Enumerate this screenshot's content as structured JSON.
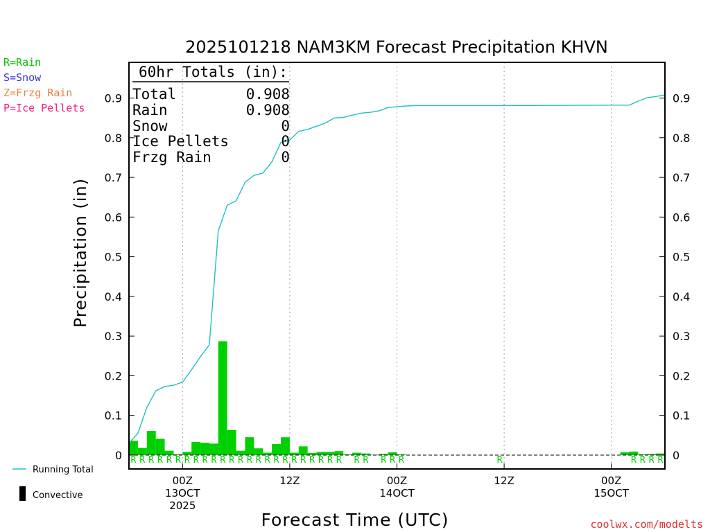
{
  "chart_data": {
    "type": "bar",
    "title": "2025101218 NAM3KM Forecast Precipitation KHVN",
    "xlabel": "Forecast Time (UTC)",
    "ylabel": "Precipitation (in)",
    "ylim": [
      -0.035,
      0.99
    ],
    "yticks": [
      0,
      0.1,
      0.2,
      0.3,
      0.4,
      0.5,
      0.6,
      0.7,
      0.8,
      0.9
    ],
    "ytick_labels": [
      "0",
      "0.1",
      "0.2",
      "0.3",
      "0.4",
      "0.5",
      "0.6",
      "0.7",
      "0.8",
      "0.9"
    ],
    "xlim_hours": [
      0,
      60
    ],
    "hour_axis_note": "hours after 2025-10-12 18Z",
    "xticks": [
      {
        "hour": 6,
        "line1": "00Z",
        "line2": "13OCT",
        "line3": "2025"
      },
      {
        "hour": 18,
        "line1": "12Z",
        "line2": "",
        "line3": ""
      },
      {
        "hour": 30,
        "line1": "00Z",
        "line2": "14OCT",
        "line3": ""
      },
      {
        "hour": 42,
        "line1": "12Z",
        "line2": "",
        "line3": ""
      },
      {
        "hour": 54,
        "line1": "00Z",
        "line2": "15OCT",
        "line3": ""
      }
    ],
    "bars_hourly": {
      "name": "Convective",
      "color": "#00d000",
      "hour_end": [
        1,
        2,
        3,
        4,
        5,
        6,
        7,
        8,
        9,
        10,
        11,
        12,
        13,
        14,
        15,
        16,
        17,
        18,
        19,
        20,
        21,
        22,
        23,
        24,
        25,
        26,
        27,
        28,
        29,
        30,
        31,
        56,
        57,
        58,
        59,
        60
      ],
      "values": [
        0.036,
        0.018,
        0.061,
        0.041,
        0.011,
        0.002,
        0.008,
        0.033,
        0.031,
        0.029,
        0.287,
        0.063,
        0.011,
        0.045,
        0.017,
        0.006,
        0.028,
        0.045,
        0.006,
        0.022,
        0.005,
        0.008,
        0.008,
        0.01,
        0.002,
        0.006,
        0.004,
        0.001,
        0.003,
        0.007,
        0.002,
        0.007,
        0.009,
        0.002,
        0.003,
        0.004
      ]
    },
    "running_total": {
      "name": "Running Total",
      "color": "#20c0c0",
      "hours": [
        0,
        1,
        2,
        3,
        4,
        5,
        6,
        7,
        8,
        9,
        10,
        11,
        12,
        13,
        14,
        15,
        16,
        17,
        18,
        19,
        20,
        21,
        22,
        23,
        24,
        25,
        26,
        27,
        28,
        29,
        30,
        31,
        32,
        42,
        56,
        57,
        58,
        59,
        60
      ],
      "values": [
        0.03,
        0.055,
        0.12,
        0.162,
        0.173,
        0.176,
        0.184,
        0.215,
        0.248,
        0.278,
        0.565,
        0.63,
        0.641,
        0.688,
        0.705,
        0.711,
        0.739,
        0.788,
        0.794,
        0.816,
        0.821,
        0.829,
        0.837,
        0.85,
        0.851,
        0.857,
        0.862,
        0.864,
        0.868,
        0.876,
        0.878,
        0.88,
        0.881,
        0.881,
        0.882,
        0.892,
        0.901,
        0.904,
        0.908
      ]
    },
    "ptype_row": {
      "symbol": "R",
      "color": "#00d000",
      "hours": [
        1,
        2,
        3,
        4,
        5,
        6,
        7,
        8,
        9,
        10,
        11,
        12,
        13,
        14,
        15,
        16,
        17,
        18,
        19,
        20,
        21,
        22,
        23,
        24,
        26,
        27,
        29,
        30,
        31,
        42,
        57,
        58,
        59,
        60
      ]
    },
    "totals_box": {
      "heading": "60hr Totals (in):",
      "rows": [
        {
          "label": "Total",
          "value": "0.908"
        },
        {
          "label": "Rain",
          "value": "0.908"
        },
        {
          "label": "Snow",
          "value": "0"
        },
        {
          "label": "Ice Pellets",
          "value": "0"
        },
        {
          "label": "Frzg Rain",
          "value": "0"
        }
      ]
    }
  },
  "ptype_legend": [
    {
      "text": "R=Rain",
      "color": "#00c000"
    },
    {
      "text": "S=Snow",
      "color": "#3030e0"
    },
    {
      "text": "Z=Frzg Rain",
      "color": "#f08040"
    },
    {
      "text": "P=Ice Pellets",
      "color": "#f02080"
    }
  ],
  "series_legend": {
    "running_total": "Running Total",
    "convective": "Convective"
  },
  "credit": "coolwx.com/modelts"
}
